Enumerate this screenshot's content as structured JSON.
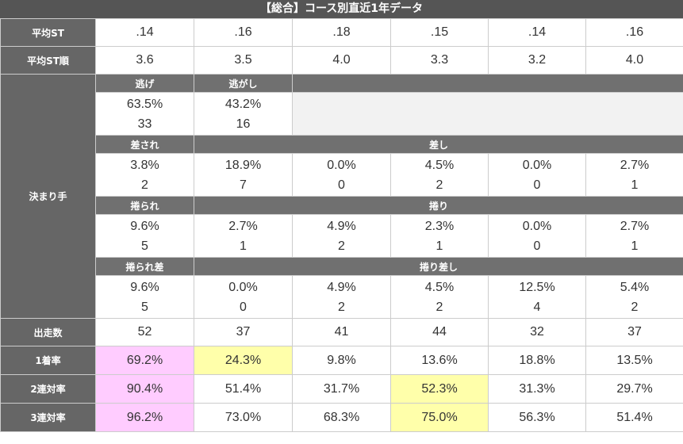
{
  "title": "【総合】コース別直近1年データ",
  "rows": {
    "avg_st": {
      "label": "平均ST",
      "values": [
        ".14",
        ".16",
        ".18",
        ".15",
        ".14",
        ".16"
      ]
    },
    "avg_st_rank": {
      "label": "平均ST順",
      "values": [
        "3.6",
        "3.5",
        "4.0",
        "3.3",
        "3.2",
        "4.0"
      ]
    },
    "kimarite": {
      "label": "決まり手",
      "nige": {
        "headers": [
          "逃げ",
          "逃がし"
        ],
        "cells": [
          {
            "pct": "63.5%",
            "count": "33"
          },
          {
            "pct": "43.2%",
            "count": "16"
          }
        ]
      },
      "sasare": {
        "header_first": "差され",
        "header_rest": "差し",
        "cells": [
          {
            "pct": "3.8%",
            "count": "2"
          },
          {
            "pct": "18.9%",
            "count": "7"
          },
          {
            "pct": "0.0%",
            "count": "0"
          },
          {
            "pct": "4.5%",
            "count": "2"
          },
          {
            "pct": "0.0%",
            "count": "0"
          },
          {
            "pct": "2.7%",
            "count": "1"
          }
        ]
      },
      "makurare": {
        "header_first": "捲られ",
        "header_rest": "捲り",
        "cells": [
          {
            "pct": "9.6%",
            "count": "5"
          },
          {
            "pct": "2.7%",
            "count": "1"
          },
          {
            "pct": "4.9%",
            "count": "2"
          },
          {
            "pct": "2.3%",
            "count": "1"
          },
          {
            "pct": "0.0%",
            "count": "0"
          },
          {
            "pct": "2.7%",
            "count": "1"
          }
        ]
      },
      "makurisashi": {
        "header_first": "捲られ差",
        "header_rest": "捲り差し",
        "cells": [
          {
            "pct": "9.6%",
            "count": "5"
          },
          {
            "pct": "0.0%",
            "count": "0"
          },
          {
            "pct": "4.9%",
            "count": "2"
          },
          {
            "pct": "4.5%",
            "count": "2"
          },
          {
            "pct": "12.5%",
            "count": "4"
          },
          {
            "pct": "5.4%",
            "count": "2"
          }
        ]
      }
    },
    "starts": {
      "label": "出走数",
      "values": [
        "52",
        "37",
        "41",
        "44",
        "32",
        "37"
      ]
    },
    "win_rate": {
      "label": "1着率",
      "values": [
        "69.2%",
        "24.3%",
        "9.8%",
        "13.6%",
        "18.8%",
        "13.5%"
      ]
    },
    "top2_rate": {
      "label": "2連対率",
      "values": [
        "90.4%",
        "51.4%",
        "31.7%",
        "52.3%",
        "31.3%",
        "29.7%"
      ]
    },
    "top3_rate": {
      "label": "3連対率",
      "values": [
        "96.2%",
        "73.0%",
        "68.3%",
        "75.0%",
        "56.3%",
        "51.4%"
      ]
    }
  },
  "highlight_colors": {
    "pink": "#ffccff",
    "yellow": "#ffffaa"
  }
}
